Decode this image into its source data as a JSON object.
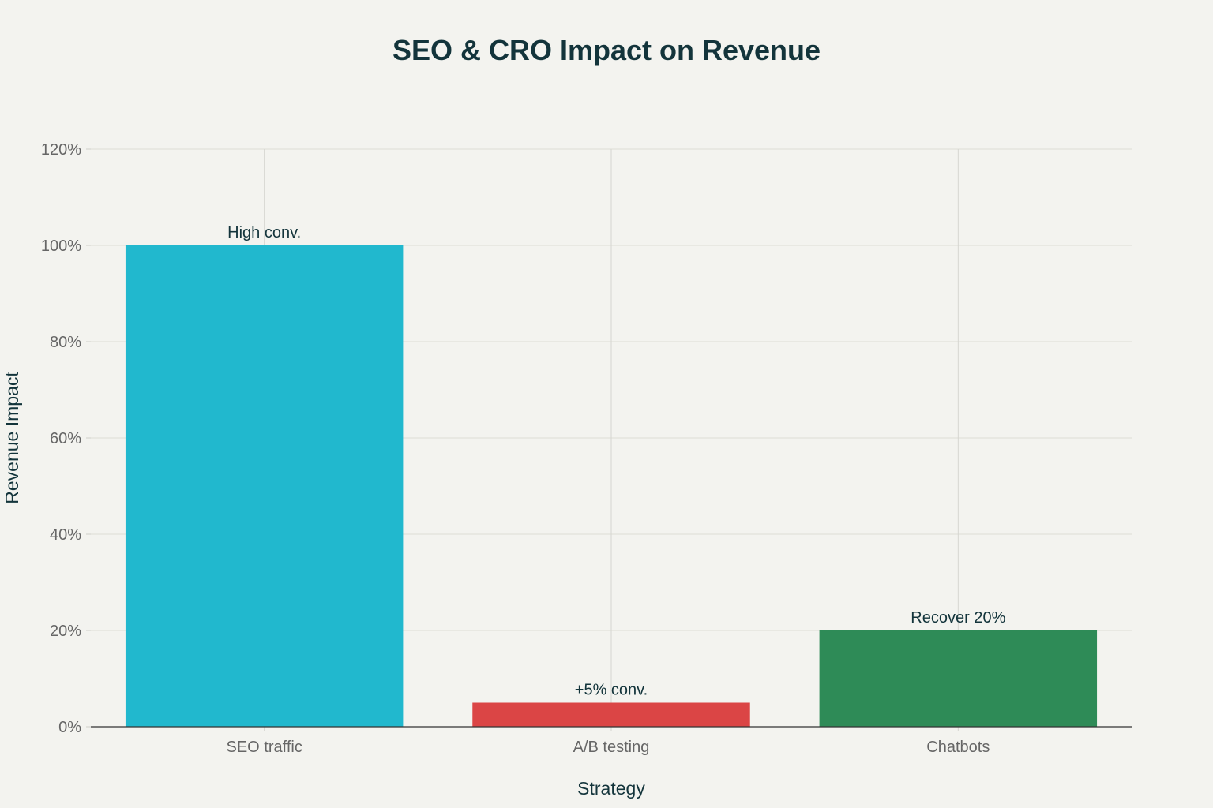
{
  "chart_data": {
    "type": "bar",
    "title": "SEO & CRO Impact on Revenue",
    "xlabel": "Strategy",
    "ylabel": "Revenue Impact",
    "categories": [
      "SEO traffic",
      "A/B testing",
      "Chatbots"
    ],
    "values": [
      100,
      5,
      20
    ],
    "bar_labels": [
      "High conv.",
      "+5% conv.",
      "Recover 20%"
    ],
    "colors": [
      "#21b8ce",
      "#db4545",
      "#2e8b57"
    ],
    "ylim": [
      0,
      120
    ],
    "yticks": [
      0,
      20,
      40,
      60,
      80,
      100,
      120
    ],
    "ytick_labels": [
      "0%",
      "20%",
      "40%",
      "60%",
      "80%",
      "100%",
      "120%"
    ],
    "grid": true,
    "legend": "none"
  }
}
